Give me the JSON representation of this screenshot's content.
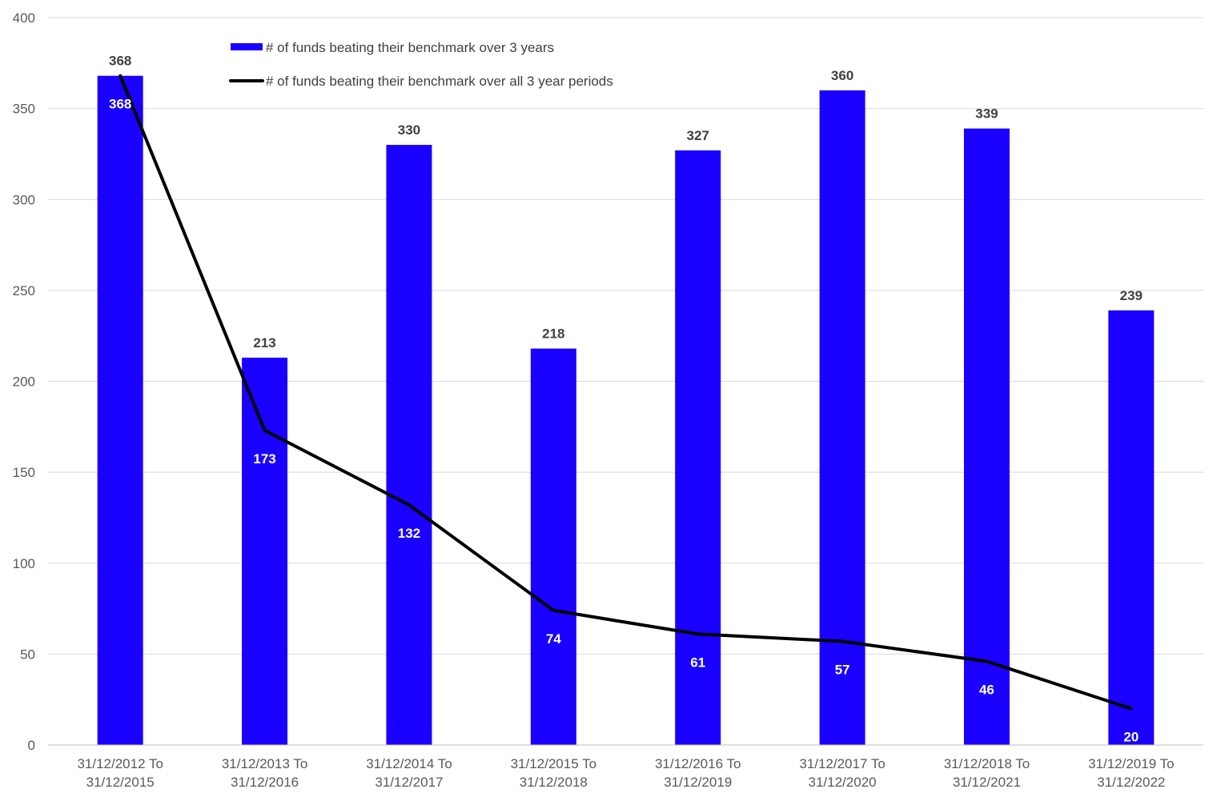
{
  "chart_data": {
    "type": "bar",
    "title": "",
    "xlabel": "",
    "ylabel": "",
    "ylim": [
      0,
      400
    ],
    "y_ticks": [
      0,
      50,
      100,
      150,
      200,
      250,
      300,
      350,
      400
    ],
    "grid": true,
    "legend_position": "top-left",
    "categories": [
      [
        "31/12/2012 To",
        "31/12/2015"
      ],
      [
        "31/12/2013 To",
        "31/12/2016"
      ],
      [
        "31/12/2014 To",
        "31/12/2017"
      ],
      [
        "31/12/2015 To",
        "31/12/2018"
      ],
      [
        "31/12/2016 To",
        "31/12/2019"
      ],
      [
        "31/12/2017 To",
        "31/12/2020"
      ],
      [
        "31/12/2018 To",
        "31/12/2021"
      ],
      [
        "31/12/2019 To",
        "31/12/2022"
      ]
    ],
    "series": [
      {
        "name": "# of funds beating their benchmark over 3 years",
        "type": "bar",
        "color": "#1a00ff",
        "values": [
          368,
          213,
          330,
          218,
          327,
          360,
          339,
          239
        ]
      },
      {
        "name": "# of funds beating their benchmark over all 3 year periods",
        "type": "line",
        "color": "#000000",
        "values": [
          368,
          173,
          132,
          74,
          61,
          57,
          46,
          20
        ]
      }
    ]
  }
}
